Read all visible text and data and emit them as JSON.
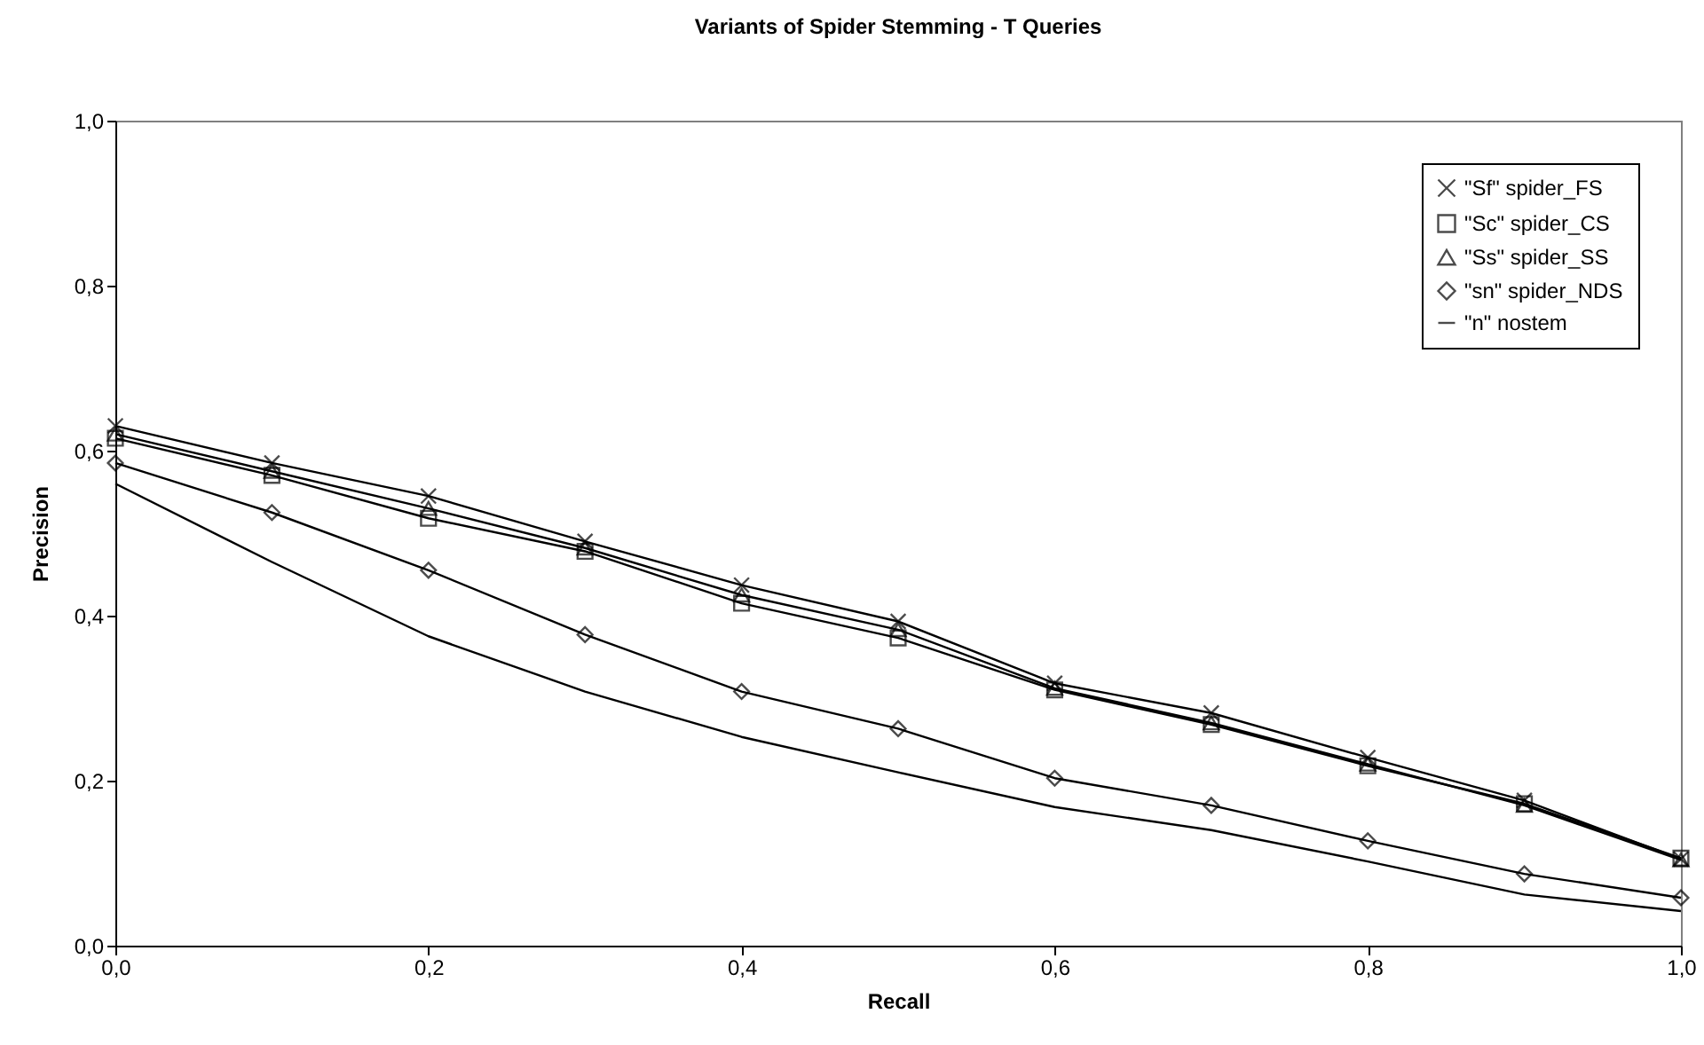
{
  "chart_data": {
    "type": "line",
    "title": "Variants of Spider Stemming - T Queries",
    "xlabel": "Recall",
    "ylabel": "Precision",
    "x": [
      0,
      0.1,
      0.2,
      0.3,
      0.4,
      0.5,
      0.6,
      0.7,
      0.8,
      0.9,
      1.0
    ],
    "series": [
      {
        "name": "\"Sf\" spider_FS",
        "color": "#000000",
        "marker": "cross",
        "values": [
          0.63,
          0.585,
          0.545,
          0.49,
          0.437,
          0.393,
          0.318,
          0.282,
          0.228,
          0.176,
          0.105
        ]
      },
      {
        "name": "\"Sc\" spider_CS",
        "color": "#000000",
        "marker": "square",
        "values": [
          0.615,
          0.57,
          0.518,
          0.478,
          0.415,
          0.373,
          0.31,
          0.268,
          0.218,
          0.172,
          0.106
        ]
      },
      {
        "name": "\"Ss\" spider_SS",
        "color": "#000000",
        "marker": "triangle",
        "values": [
          0.62,
          0.575,
          0.53,
          0.482,
          0.425,
          0.383,
          0.312,
          0.27,
          0.22,
          0.17,
          0.104
        ]
      },
      {
        "name": "\"sn\" spider_NDS",
        "color": "#000000",
        "marker": "diamond",
        "values": [
          0.585,
          0.525,
          0.455,
          0.377,
          0.308,
          0.263,
          0.203,
          0.17,
          0.127,
          0.087,
          0.058
        ]
      },
      {
        "name": "\"n\" nostem",
        "color": "#000000",
        "marker": "none",
        "values": [
          0.56,
          0.465,
          0.375,
          0.308,
          0.253,
          0.21,
          0.168,
          0.14,
          0.102,
          0.062,
          0.042
        ]
      }
    ],
    "xlim": [
      0,
      1.0
    ],
    "ylim": [
      0,
      1.0
    ],
    "xticks": [
      {
        "value": 0,
        "label": "0,0"
      },
      {
        "value": 0.2,
        "label": "0,2"
      },
      {
        "value": 0.4,
        "label": "0,4"
      },
      {
        "value": 0.6,
        "label": "0,6"
      },
      {
        "value": 0.8,
        "label": "0,8"
      },
      {
        "value": 1.0,
        "label": "1,0"
      }
    ],
    "yticks": [
      {
        "value": 0,
        "label": "0,0"
      },
      {
        "value": 0.2,
        "label": "0,2"
      },
      {
        "value": 0.4,
        "label": "0,4"
      },
      {
        "value": 0.6,
        "label": "0,6"
      },
      {
        "value": 0.8,
        "label": "0,8"
      },
      {
        "value": 1.0,
        "label": "1,0"
      }
    ],
    "grid": false,
    "legend": "top right"
  }
}
